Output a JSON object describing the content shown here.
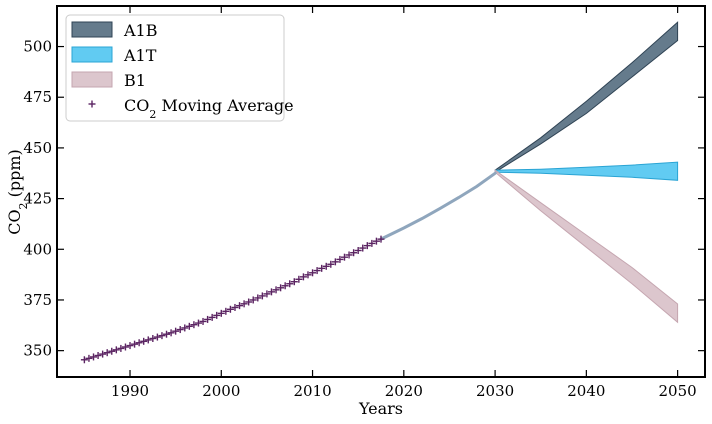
{
  "chart_data": {
    "type": "area",
    "xlabel": "Years",
    "ylabel_main": "CO",
    "ylabel_sub": "2",
    "ylabel_unit": " (ppm)",
    "xlim": [
      1982,
      2053
    ],
    "ylim": [
      337,
      520
    ],
    "x_ticks": [
      1990,
      2000,
      2010,
      2020,
      2030,
      2040,
      2050
    ],
    "y_ticks": [
      350,
      375,
      400,
      425,
      450,
      475,
      500
    ],
    "legend_position": "upper-left",
    "grid": false,
    "moving_average": {
      "name": "CO₂ Moving Average",
      "name_main": "CO",
      "name_sub": "2",
      "name_rest": " Moving Average",
      "color": "#5b2462",
      "marker": "plus",
      "x": [
        1985.0,
        1985.5,
        1986.0,
        1986.5,
        1987.0,
        1987.5,
        1988.0,
        1988.5,
        1989.0,
        1989.5,
        1990.0,
        1990.5,
        1991.0,
        1991.5,
        1992.0,
        1992.5,
        1993.0,
        1993.5,
        1994.0,
        1994.5,
        1995.0,
        1995.5,
        1996.0,
        1996.5,
        1997.0,
        1997.5,
        1998.0,
        1998.5,
        1999.0,
        1999.5,
        2000.0,
        2000.5,
        2001.0,
        2001.5,
        2002.0,
        2002.5,
        2003.0,
        2003.5,
        2004.0,
        2004.5,
        2005.0,
        2005.5,
        2006.0,
        2006.5,
        2007.0,
        2007.5,
        2008.0,
        2008.5,
        2009.0,
        2009.5,
        2010.0,
        2010.5,
        2011.0,
        2011.5,
        2012.0,
        2012.5,
        2013.0,
        2013.5,
        2014.0,
        2014.5,
        2015.0,
        2015.5,
        2016.0,
        2016.5,
        2017.0,
        2017.5
      ],
      "y": [
        345.5,
        346.2,
        346.9,
        347.6,
        348.3,
        349.0,
        349.7,
        350.4,
        351.1,
        351.8,
        352.5,
        353.2,
        353.9,
        354.6,
        355.3,
        356.0,
        356.7,
        357.4,
        358.1,
        358.8,
        359.6,
        360.4,
        361.2,
        362.0,
        362.8,
        363.6,
        364.4,
        365.4,
        366.4,
        367.4,
        368.4,
        369.4,
        370.4,
        371.3,
        372.2,
        373.1,
        374.0,
        375.0,
        376.0,
        377.0,
        378.0,
        379.0,
        380.0,
        381.0,
        382.0,
        383.0,
        384.0,
        385.2,
        386.4,
        387.4,
        388.4,
        389.5,
        390.6,
        391.6,
        392.6,
        393.8,
        395.0,
        396.1,
        397.2,
        398.3,
        399.4,
        400.6,
        401.8,
        402.9,
        404.0,
        405.0
      ]
    },
    "projection": {
      "name": "projection",
      "color": "#8fa6bd",
      "x": [
        2017.5,
        2020,
        2022,
        2024,
        2026,
        2028,
        2030
      ],
      "y": [
        405.0,
        410.5,
        415.2,
        420.2,
        425.5,
        431.0,
        437.5
      ]
    },
    "series": [
      {
        "name": "A1B",
        "fill": "#4a6478",
        "edge": "#2f4354",
        "fill_opacity": 0.85,
        "x": [
          2030,
          2035,
          2040,
          2045,
          2050
        ],
        "upper": [
          439,
          455,
          473,
          492,
          512
        ],
        "lower": [
          438,
          452,
          467,
          485,
          503
        ]
      },
      {
        "name": "A1T",
        "fill": "#45c2f0",
        "edge": "#2aa4d4",
        "fill_opacity": 0.85,
        "x": [
          2030,
          2035,
          2040,
          2045,
          2050
        ],
        "upper": [
          439,
          439.5,
          440.5,
          441.5,
          443
        ],
        "lower": [
          438,
          437.5,
          436.5,
          435.5,
          434
        ]
      },
      {
        "name": "B1",
        "fill": "#d3b8c0",
        "edge": "#c5a6b0",
        "fill_opacity": 0.8,
        "x": [
          2030,
          2035,
          2040,
          2045,
          2050
        ],
        "upper": [
          439,
          423,
          407,
          391,
          373
        ],
        "lower": [
          438,
          419,
          401,
          383,
          364
        ]
      }
    ]
  }
}
